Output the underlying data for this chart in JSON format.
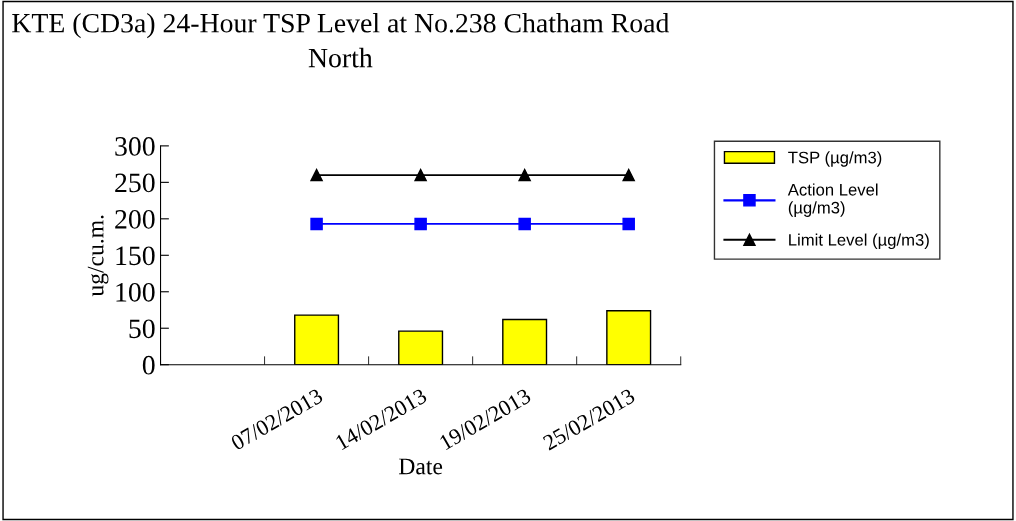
{
  "chart_data": {
    "type": "bar",
    "title": "KTE (CD3a) 24-Hour TSP Level at No.238 Chatham Road North",
    "xlabel": "Date",
    "ylabel": "ug/cu.m.",
    "categories": [
      null,
      "07/02/2013",
      "14/02/2013",
      "19/02/2013",
      "25/02/2013"
    ],
    "series": [
      {
        "name": "TSP (µg/m3)",
        "color": "#ffff00",
        "values": [
          null,
          68,
          46,
          62,
          74
        ]
      },
      {
        "name": "Action Level\n(µg/m3)",
        "type": "line",
        "color": "#0000ff",
        "marker": "square",
        "values": [
          null,
          193,
          193,
          193,
          193
        ]
      },
      {
        "name": "Limit Level (µg/m3)",
        "type": "line",
        "color": "#000000",
        "marker": "triangle",
        "values": [
          null,
          260,
          260,
          260,
          260
        ]
      }
    ],
    "ylim": [
      0,
      300
    ],
    "yticks": [
      0,
      50,
      100,
      150,
      200,
      250,
      300
    ],
    "grid": false,
    "legend": "right"
  }
}
